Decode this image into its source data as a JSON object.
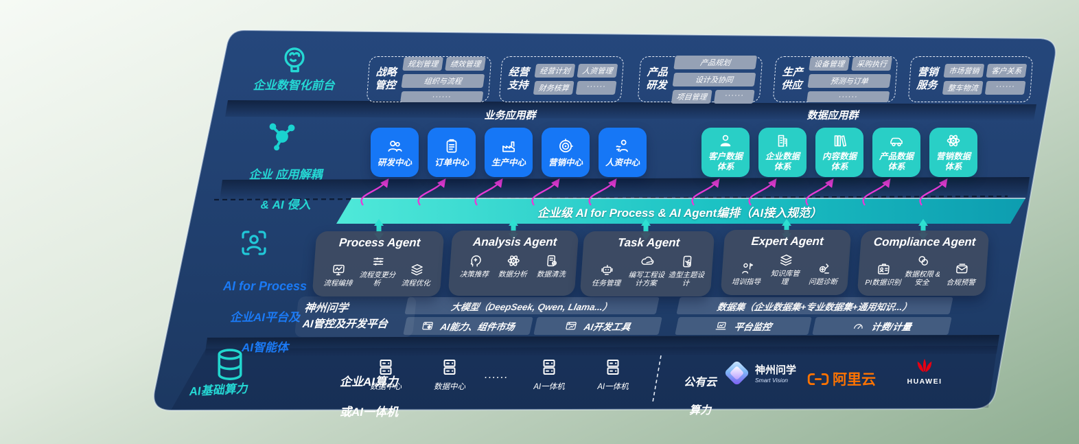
{
  "front_office": {
    "label": "企业数智化前台",
    "icon": "brain-icon",
    "groups": [
      {
        "title": "战略管控",
        "chips": [
          "规划管理",
          "绩效管理",
          "组织与流程",
          "······"
        ]
      },
      {
        "title": "经营支持",
        "chips": [
          "经营计划",
          "人资管理",
          "财务核算",
          "······"
        ]
      },
      {
        "title": "产品研发",
        "chips": [
          "产品规划",
          "设计及协同",
          "项目管理",
          "······"
        ]
      },
      {
        "title": "生产供应",
        "chips": [
          "设备管理",
          "采购执行",
          "预测与订单",
          "······"
        ]
      },
      {
        "title": "营销服务",
        "chips": [
          "市场营销",
          "客户关系",
          "整车物流",
          "······"
        ]
      }
    ]
  },
  "app_layer": {
    "label_line1": "企业 应用解耦",
    "label_line2": "& AI 侵入",
    "icon": "molecule-icon",
    "business_group": {
      "title": "业务应用群",
      "apps": [
        {
          "label": "研发中心",
          "icon": "people-icon"
        },
        {
          "label": "订单中心",
          "icon": "clipboard-icon"
        },
        {
          "label": "生产中心",
          "icon": "factory-icon"
        },
        {
          "label": "营销中心",
          "icon": "target-icon"
        },
        {
          "label": "人资中心",
          "icon": "people-flow-icon"
        }
      ]
    },
    "data_group": {
      "title": "数据应用群",
      "apps": [
        {
          "label": "客户数据体系",
          "icon": "person-icon"
        },
        {
          "label": "企业数据体系",
          "icon": "building-icon"
        },
        {
          "label": "内容数据体系",
          "icon": "books-icon"
        },
        {
          "label": "产品数据体系",
          "icon": "car-icon"
        },
        {
          "label": "营销数据体系",
          "icon": "atom-icon"
        }
      ]
    }
  },
  "ai_bar": {
    "text": "企业级 AI for Process & AI Agent编排（AI接入规范）"
  },
  "agent_layer": {
    "label_line1": "AI for Process",
    "label_line2": "企业AI平台及",
    "label_line3": "AI智能体",
    "icon": "face-scan-icon",
    "agents": [
      {
        "title": "Process Agent",
        "items": [
          {
            "label": "流程编排",
            "icon": "monitor-wave-icon"
          },
          {
            "label": "流程变更分析",
            "icon": "sliders-icon"
          },
          {
            "label": "流程优化",
            "icon": "layers-icon"
          }
        ]
      },
      {
        "title": "Analysis Agent",
        "items": [
          {
            "label": "决策推荐",
            "icon": "head-idea-icon"
          },
          {
            "label": "数据分析",
            "icon": "atom-icon"
          },
          {
            "label": "数据清洗",
            "icon": "doc-gear-icon"
          }
        ]
      },
      {
        "title": "Task Agent",
        "items": [
          {
            "label": "任务管理",
            "icon": "robot-icon"
          },
          {
            "label": "编写工程设计方案",
            "icon": "cloud-edit-icon"
          },
          {
            "label": "造型主题设计",
            "icon": "tablet-check-icon"
          }
        ]
      },
      {
        "title": "Expert Agent",
        "items": [
          {
            "label": "培训指导",
            "icon": "training-icon"
          },
          {
            "label": "知识库管理",
            "icon": "layers-icon"
          },
          {
            "label": "问题诊断",
            "icon": "diagnose-icon"
          }
        ]
      },
      {
        "title": "Compliance Agent",
        "items": [
          {
            "label": "PI数据识别",
            "icon": "id-card-icon"
          },
          {
            "label": "数据权限 & 安全",
            "icon": "data-lock-icon"
          },
          {
            "label": "合规预警",
            "icon": "mail-alert-icon"
          }
        ]
      }
    ]
  },
  "platform": {
    "label_line1": "神州问学",
    "label_line2": "AI管控及开发平台",
    "model_bar": "大模型（DeepSeek, Qwen, Llama...）",
    "dataset_bar": "数据集（企业数据集+专业数据集+通用知识...）",
    "cells": [
      {
        "label": "AI能力、组件市场",
        "icon": "window-gear-icon"
      },
      {
        "label": "AI开发工具",
        "icon": "window-tool-icon"
      },
      {
        "label": "平台监控",
        "icon": "laptop-chart-icon"
      },
      {
        "label": "计费/计量",
        "icon": "gauge-icon"
      }
    ]
  },
  "infra": {
    "label": "AI基础算力",
    "icon": "database-icon",
    "compute_line1": "企业AI算力",
    "compute_line2": "或AI一体机",
    "nodes": [
      {
        "label": "数据中心",
        "icon": "server-icon"
      },
      {
        "label": "数据中心",
        "icon": "server-icon"
      },
      {
        "label": "······"
      },
      {
        "label": "AI一体机",
        "icon": "server-icon"
      },
      {
        "label": "AI一体机",
        "icon": "server-icon"
      }
    ],
    "public_cloud_line1": "公有云",
    "public_cloud_line2": "算力",
    "partners": [
      {
        "name": "神州问学",
        "sub": "Smart Vision",
        "icon": "smartvision-logo-icon"
      },
      {
        "name": "阿里云",
        "icon": "aliyun-logo-icon"
      },
      {
        "name": "HUAWEI",
        "icon": "huawei-logo-icon"
      }
    ]
  },
  "colors": {
    "panel": "#203e6c",
    "accent_teal": "#25d8d4",
    "accent_blue": "#1b7af5",
    "blue_box": "#1677f6",
    "teal_box": "#29cfc6",
    "magenta": "#e83ad6",
    "aliyun_orange": "#ff7300",
    "huawei_red": "#e60012"
  }
}
